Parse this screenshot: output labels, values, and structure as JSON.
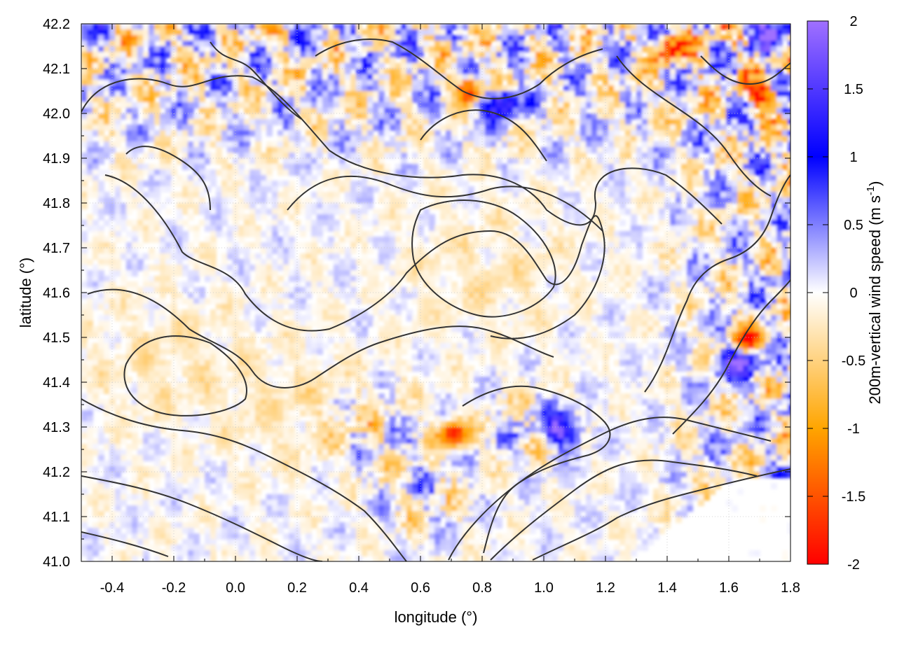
{
  "chart_data": {
    "type": "heatmap",
    "xlabel": "longitude (°)",
    "ylabel": "latitude (°)",
    "colorbar_label": "200m-vertical wind speed (m s",
    "colorbar_label_sup": "-1",
    "colorbar_label_close": ")",
    "xlim": [
      -0.5,
      1.8
    ],
    "ylim": [
      41.0,
      42.2
    ],
    "clim": [
      -2,
      2
    ],
    "x_ticks": [
      -0.4,
      -0.2,
      0.0,
      0.2,
      0.4,
      0.6,
      0.8,
      1.0,
      1.2,
      1.4,
      1.6,
      1.8
    ],
    "x_tick_labels": [
      "-0.4",
      "-0.2",
      "0.0",
      "0.2",
      "0.4",
      "0.6",
      "0.8",
      "1.0",
      "1.2",
      "1.4",
      "1.6",
      "1.8"
    ],
    "y_ticks": [
      41.0,
      41.1,
      41.2,
      41.3,
      41.4,
      41.5,
      41.6,
      41.7,
      41.8,
      41.9,
      42.0,
      42.1,
      42.2
    ],
    "y_tick_labels": [
      "41.0",
      "41.1",
      "41.2",
      "41.3",
      "41.4",
      "41.5",
      "41.6",
      "41.7",
      "41.8",
      "41.9",
      "42.0",
      "42.1",
      "42.2"
    ],
    "colorbar_ticks": [
      2,
      1.5,
      1,
      0.5,
      0,
      -0.5,
      -1,
      -1.5,
      -2
    ],
    "colorbar_tick_labels": [
      "2",
      "1.5",
      "1",
      "0.5",
      "0",
      "-0.5",
      "-1",
      "-1.5",
      "-2"
    ],
    "colormap": [
      {
        "value": -2,
        "color": "#ff0000"
      },
      {
        "value": -1,
        "color": "#ffa500"
      },
      {
        "value": 0,
        "color": "#ffffff"
      },
      {
        "value": 1,
        "color": "#0000ff"
      },
      {
        "value": 2,
        "color": "#a070ff"
      }
    ],
    "grid": true,
    "overlay": "topography contour lines (black)",
    "strong_updraft_regions": [
      {
        "lon": 0.85,
        "lat": 42.03
      },
      {
        "lon": 1.05,
        "lat": 41.3
      },
      {
        "lon": 1.62,
        "lat": 41.45
      },
      {
        "lon": 1.75,
        "lat": 42.18
      }
    ],
    "strong_downdraft_regions": [
      {
        "lon": 0.75,
        "lat": 42.06
      },
      {
        "lon": 1.4,
        "lat": 42.15
      },
      {
        "lon": 0.7,
        "lat": 41.29
      },
      {
        "lon": 1.65,
        "lat": 41.5
      },
      {
        "lon": 1.7,
        "lat": 42.05
      }
    ]
  }
}
